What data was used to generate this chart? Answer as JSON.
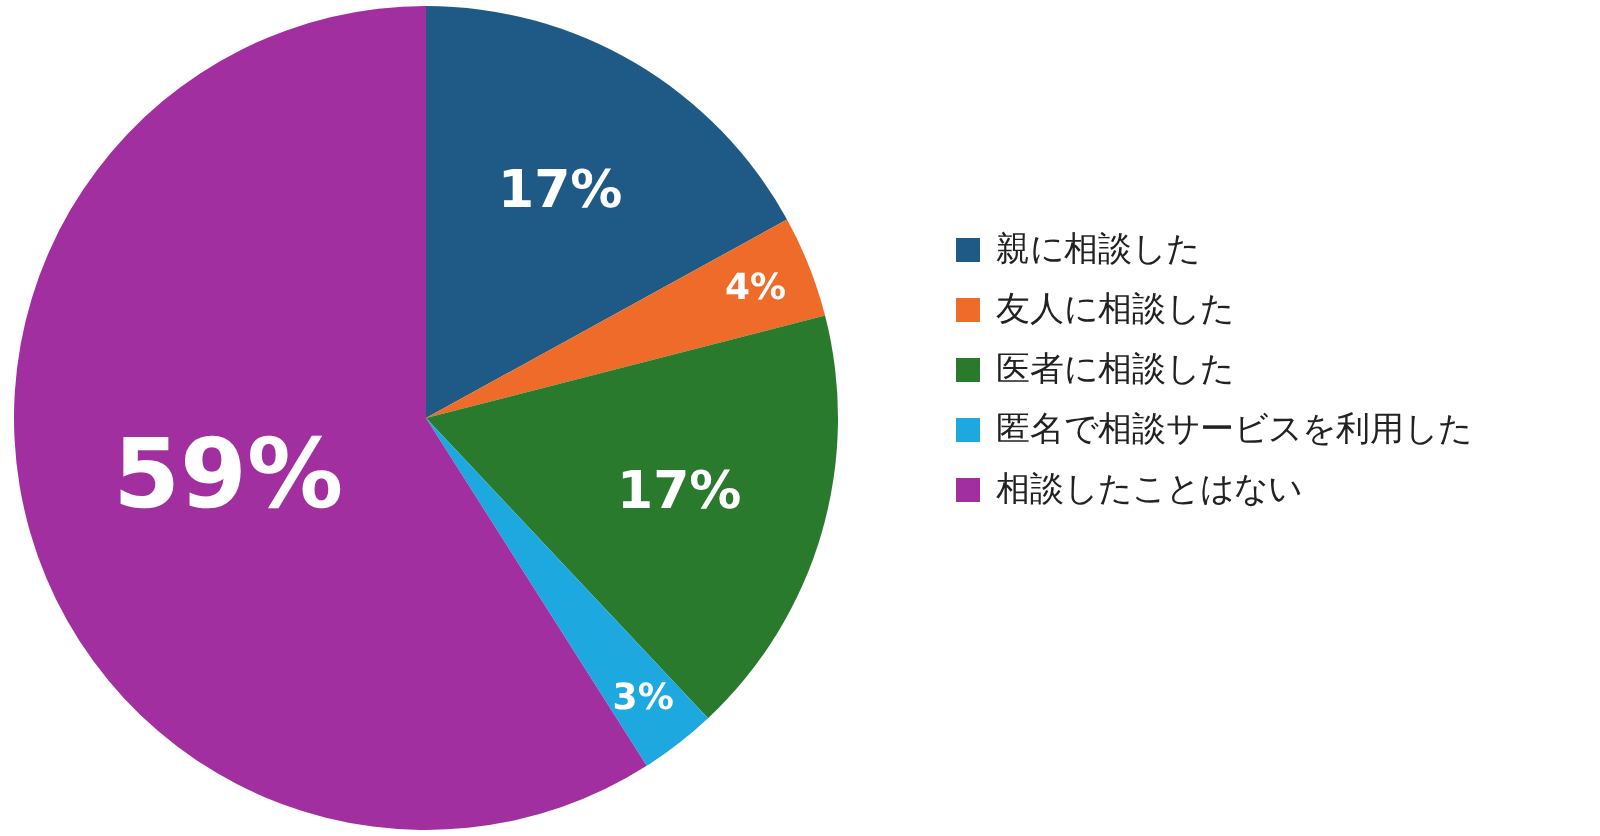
{
  "chart_data": {
    "type": "pie",
    "categories": [
      "親に相談した",
      "友人に相談した",
      "医者に相談した",
      "匿名で相談サービスを利用した",
      "相談したことはない"
    ],
    "values": [
      17,
      4,
      17,
      3,
      59
    ],
    "value_labels": [
      "17%",
      "4%",
      "17%",
      "3%",
      "59%"
    ],
    "colors": [
      "#1e5a85",
      "#ee6b2a",
      "#2a7a2e",
      "#1ea8e0",
      "#a12f9f"
    ],
    "legend": "right"
  }
}
